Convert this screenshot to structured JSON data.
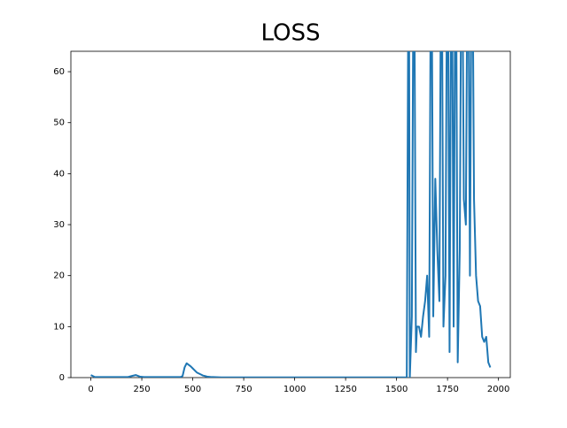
{
  "chart_data": {
    "type": "line",
    "title": "LOSS",
    "x": [
      0,
      20,
      40,
      60,
      80,
      100,
      120,
      140,
      160,
      180,
      200,
      220,
      240,
      260,
      280,
      300,
      320,
      340,
      360,
      380,
      400,
      420,
      440,
      450,
      460,
      470,
      480,
      490,
      500,
      510,
      520,
      530,
      540,
      550,
      560,
      570,
      580,
      590,
      600,
      640,
      680,
      720,
      760,
      800,
      840,
      880,
      920,
      960,
      1000,
      1040,
      1080,
      1120,
      1160,
      1200,
      1240,
      1280,
      1320,
      1360,
      1400,
      1440,
      1480,
      1520,
      1540,
      1550,
      1560,
      1565,
      1575,
      1585,
      1595,
      1600,
      1610,
      1620,
      1630,
      1640,
      1650,
      1660,
      1670,
      1680,
      1690,
      1700,
      1710,
      1720,
      1730,
      1740,
      1750,
      1760,
      1770,
      1780,
      1790,
      1800,
      1810,
      1820,
      1830,
      1840,
      1850,
      1860,
      1870,
      1880,
      1890,
      1900,
      1910,
      1920,
      1930,
      1940,
      1950,
      1960
    ],
    "series": [
      {
        "color": "#1f77b4",
        "values": [
          0.5,
          0.1,
          0.1,
          0.1,
          0.1,
          0.1,
          0.1,
          0.1,
          0.1,
          0.1,
          0.3,
          0.5,
          0.2,
          0.1,
          0.1,
          0.1,
          0.1,
          0.1,
          0.1,
          0.1,
          0.1,
          0.1,
          0.1,
          0.3,
          2.0,
          2.8,
          2.5,
          2.2,
          1.8,
          1.4,
          1.0,
          0.8,
          0.6,
          0.4,
          0.3,
          0.2,
          0.15,
          0.1,
          0.1,
          0.05,
          0.05,
          0.05,
          0.05,
          0.05,
          0.05,
          0.05,
          0.05,
          0.05,
          0.05,
          0.05,
          0.05,
          0.05,
          0.05,
          0.05,
          0.05,
          0.05,
          0.05,
          0.05,
          0.05,
          0.05,
          0.05,
          0.05,
          0.05,
          0,
          100,
          0,
          12,
          100,
          5,
          10,
          10,
          8,
          12,
          15,
          20,
          8,
          100,
          12,
          39,
          25,
          15,
          100,
          10,
          20,
          100,
          5,
          100,
          10,
          100,
          3,
          25,
          100,
          35,
          30,
          100,
          20,
          100,
          35,
          20,
          15,
          14,
          8,
          7,
          8,
          3,
          2
        ]
      }
    ],
    "xlim": [
      -98,
      2058
    ],
    "ylim": [
      0,
      64
    ],
    "xticks": [
      0,
      250,
      500,
      750,
      1000,
      1250,
      1500,
      1750,
      2000
    ],
    "yticks": [
      0,
      10,
      20,
      30,
      40,
      50,
      60
    ]
  }
}
